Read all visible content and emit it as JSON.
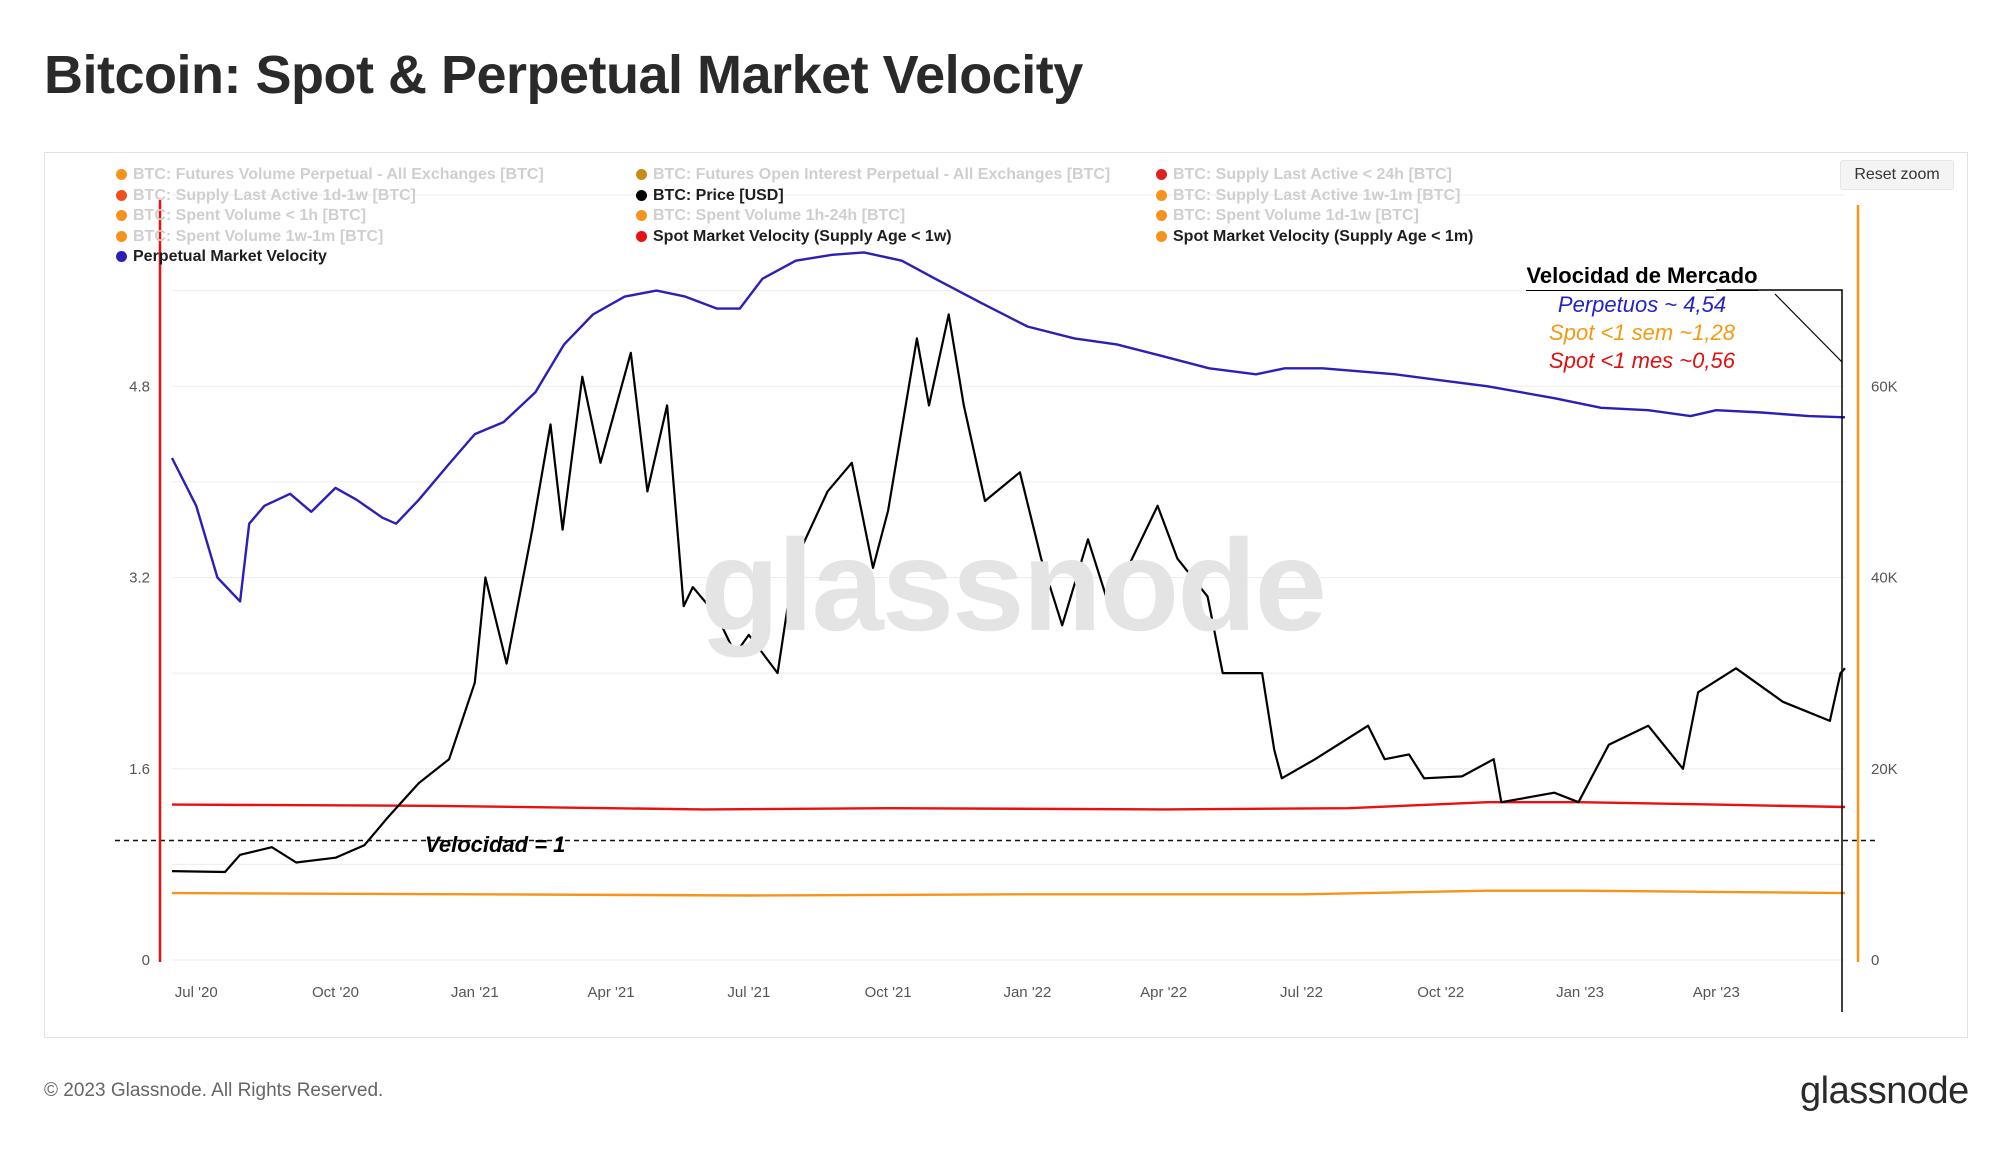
{
  "title": "Bitcoin: Spot & Perpetual Market Velocity",
  "reset_zoom_label": "Reset zoom",
  "watermark": "glassnode",
  "footer": {
    "copyright": "© 2023 Glassnode. All Rights Reserved.",
    "logo": "glassnode"
  },
  "legend": [
    {
      "label": "BTC: Futures Volume Perpetual - All Exchanges [BTC]",
      "color": "#f7931a",
      "active": false
    },
    {
      "label": "BTC: Futures Open Interest Perpetual - All Exchanges [BTC]",
      "color": "#c98a1a",
      "active": false
    },
    {
      "label": "BTC: Supply Last Active < 24h [BTC]",
      "color": "#e02020",
      "active": false
    },
    {
      "label": "BTC: Supply Last Active 1d-1w [BTC]",
      "color": "#f05020",
      "active": false
    },
    {
      "label": "BTC: Price [USD]",
      "color": "#000000",
      "active": true
    },
    {
      "label": "BTC: Supply Last Active 1w-1m [BTC]",
      "color": "#f7931a",
      "active": false
    },
    {
      "label": "BTC: Spent Volume < 1h [BTC]",
      "color": "#f7931a",
      "active": false
    },
    {
      "label": "BTC: Spent Volume 1h-24h [BTC]",
      "color": "#f7931a",
      "active": false
    },
    {
      "label": "BTC: Spent Volume 1d-1w [BTC]",
      "color": "#f7931a",
      "active": false
    },
    {
      "label": "BTC: Spent Volume 1w-1m [BTC]",
      "color": "#f7931a",
      "active": false
    },
    {
      "label": "Spot Market Velocity (Supply Age < 1w)",
      "color": "#e81010",
      "active": true
    },
    {
      "label": "Spot Market Velocity (Supply Age < 1m)",
      "color": "#f7931a",
      "active": true
    },
    {
      "label": "Perpetual Market Velocity",
      "color": "#2b1fb8",
      "active": true
    }
  ],
  "annotation": {
    "title": "Velocidad de Mercado",
    "lines": [
      {
        "text": "Perpetuos ~ 4,54",
        "color": "#2323c8"
      },
      {
        "text": "Spot <1 sem ~1,28",
        "color": "#f39a10"
      },
      {
        "text": "Spot <1 mes ~0,56",
        "color": "#e01010"
      }
    ]
  },
  "reference_line_label": "Velocidad = 1",
  "chart_data": {
    "type": "line",
    "x_ticks": [
      "Jul '20",
      "Oct '20",
      "Jan '21",
      "Apr '21",
      "Jul '21",
      "Oct '21",
      "Jan '22",
      "Apr '22",
      "Jul '22",
      "Oct '22",
      "Jan '23",
      "Apr '23"
    ],
    "x_range": [
      "2020-06-15",
      "2023-06-25"
    ],
    "y_left": {
      "ticks": [
        "0",
        "1.6",
        "3.2",
        "4.8"
      ],
      "range": [
        0,
        6.4
      ]
    },
    "y_right": {
      "ticks": [
        "0",
        "20K",
        "40K",
        "60K"
      ],
      "range": [
        0,
        80000
      ]
    },
    "reference_line": {
      "y": 1.0,
      "style": "dashed"
    },
    "series": [
      {
        "name": "Perpetual Market Velocity",
        "axis": "left",
        "color": "#2b1fb8",
        "points": [
          [
            "2020-06-15",
            4.2
          ],
          [
            "2020-07-01",
            3.8
          ],
          [
            "2020-07-15",
            3.2
          ],
          [
            "2020-07-30",
            3.0
          ],
          [
            "2020-08-05",
            3.65
          ],
          [
            "2020-08-15",
            3.8
          ],
          [
            "2020-09-01",
            3.9
          ],
          [
            "2020-09-15",
            3.75
          ],
          [
            "2020-10-01",
            3.95
          ],
          [
            "2020-10-15",
            3.85
          ],
          [
            "2020-11-01",
            3.7
          ],
          [
            "2020-11-10",
            3.65
          ],
          [
            "2020-11-25",
            3.85
          ],
          [
            "2020-12-15",
            4.15
          ],
          [
            "2021-01-01",
            4.4
          ],
          [
            "2021-01-20",
            4.5
          ],
          [
            "2021-02-10",
            4.75
          ],
          [
            "2021-03-01",
            5.15
          ],
          [
            "2021-03-20",
            5.4
          ],
          [
            "2021-04-10",
            5.55
          ],
          [
            "2021-05-01",
            5.6
          ],
          [
            "2021-05-20",
            5.55
          ],
          [
            "2021-06-10",
            5.45
          ],
          [
            "2021-06-25",
            5.45
          ],
          [
            "2021-07-10",
            5.7
          ],
          [
            "2021-08-01",
            5.85
          ],
          [
            "2021-08-25",
            5.9
          ],
          [
            "2021-09-15",
            5.92
          ],
          [
            "2021-10-10",
            5.85
          ],
          [
            "2021-11-01",
            5.7
          ],
          [
            "2021-12-01",
            5.5
          ],
          [
            "2022-01-01",
            5.3
          ],
          [
            "2022-02-01",
            5.2
          ],
          [
            "2022-03-01",
            5.15
          ],
          [
            "2022-04-01",
            5.05
          ],
          [
            "2022-05-01",
            4.95
          ],
          [
            "2022-06-01",
            4.9
          ],
          [
            "2022-06-20",
            4.95
          ],
          [
            "2022-07-15",
            4.95
          ],
          [
            "2022-09-01",
            4.9
          ],
          [
            "2022-10-01",
            4.85
          ],
          [
            "2022-11-01",
            4.8
          ],
          [
            "2022-12-15",
            4.7
          ],
          [
            "2023-01-15",
            4.62
          ],
          [
            "2023-02-15",
            4.6
          ],
          [
            "2023-03-15",
            4.55
          ],
          [
            "2023-04-01",
            4.6
          ],
          [
            "2023-05-01",
            4.58
          ],
          [
            "2023-06-01",
            4.55
          ],
          [
            "2023-06-25",
            4.54
          ]
        ]
      },
      {
        "name": "Spot Market Velocity (Supply Age < 1w)",
        "axis": "left",
        "color": "#e81010",
        "points": [
          [
            "2020-06-15",
            1.3
          ],
          [
            "2020-12-01",
            1.29
          ],
          [
            "2021-06-01",
            1.26
          ],
          [
            "2021-10-01",
            1.27
          ],
          [
            "2022-04-01",
            1.26
          ],
          [
            "2022-08-01",
            1.27
          ],
          [
            "2022-11-01",
            1.32
          ],
          [
            "2023-01-01",
            1.32
          ],
          [
            "2023-04-01",
            1.3
          ],
          [
            "2023-06-25",
            1.28
          ]
        ]
      },
      {
        "name": "Spot Market Velocity (Supply Age < 1m)",
        "axis": "left",
        "color": "#f7931a",
        "points": [
          [
            "2020-06-15",
            0.56
          ],
          [
            "2021-01-01",
            0.55
          ],
          [
            "2021-07-01",
            0.54
          ],
          [
            "2022-01-01",
            0.55
          ],
          [
            "2022-07-01",
            0.55
          ],
          [
            "2022-11-01",
            0.58
          ],
          [
            "2023-01-01",
            0.58
          ],
          [
            "2023-04-01",
            0.57
          ],
          [
            "2023-06-25",
            0.56
          ]
        ]
      },
      {
        "name": "BTC: Price [USD]",
        "axis": "right",
        "color": "#000000",
        "points": [
          [
            "2020-06-15",
            9300
          ],
          [
            "2020-07-20",
            9200
          ],
          [
            "2020-07-30",
            11000
          ],
          [
            "2020-08-20",
            11800
          ],
          [
            "2020-09-05",
            10200
          ],
          [
            "2020-10-01",
            10700
          ],
          [
            "2020-10-20",
            12000
          ],
          [
            "2020-11-05",
            15000
          ],
          [
            "2020-11-25",
            18500
          ],
          [
            "2020-12-15",
            21000
          ],
          [
            "2021-01-01",
            29000
          ],
          [
            "2021-01-08",
            40000
          ],
          [
            "2021-01-22",
            31000
          ],
          [
            "2021-02-08",
            45000
          ],
          [
            "2021-02-20",
            56000
          ],
          [
            "2021-02-28",
            45000
          ],
          [
            "2021-03-13",
            61000
          ],
          [
            "2021-03-25",
            52000
          ],
          [
            "2021-04-14",
            63500
          ],
          [
            "2021-04-25",
            49000
          ],
          [
            "2021-05-08",
            58000
          ],
          [
            "2021-05-19",
            37000
          ],
          [
            "2021-05-25",
            39000
          ],
          [
            "2021-06-10",
            36000
          ],
          [
            "2021-06-22",
            32000
          ],
          [
            "2021-07-01",
            34000
          ],
          [
            "2021-07-20",
            30000
          ],
          [
            "2021-07-31",
            41500
          ],
          [
            "2021-08-22",
            49000
          ],
          [
            "2021-09-07",
            52000
          ],
          [
            "2021-09-21",
            41000
          ],
          [
            "2021-10-01",
            47000
          ],
          [
            "2021-10-20",
            65000
          ],
          [
            "2021-10-28",
            58000
          ],
          [
            "2021-11-10",
            67500
          ],
          [
            "2021-11-20",
            58000
          ],
          [
            "2021-12-04",
            48000
          ],
          [
            "2021-12-27",
            51000
          ],
          [
            "2022-01-10",
            42000
          ],
          [
            "2022-01-24",
            35000
          ],
          [
            "2022-02-10",
            44000
          ],
          [
            "2022-02-24",
            37000
          ],
          [
            "2022-03-28",
            47500
          ],
          [
            "2022-04-10",
            42000
          ],
          [
            "2022-04-30",
            38000
          ],
          [
            "2022-05-10",
            30000
          ],
          [
            "2022-06-05",
            30000
          ],
          [
            "2022-06-13",
            22000
          ],
          [
            "2022-06-18",
            19000
          ],
          [
            "2022-07-10",
            21000
          ],
          [
            "2022-08-14",
            24500
          ],
          [
            "2022-08-25",
            21000
          ],
          [
            "2022-09-10",
            21500
          ],
          [
            "2022-09-20",
            19000
          ],
          [
            "2022-10-15",
            19200
          ],
          [
            "2022-11-05",
            21000
          ],
          [
            "2022-11-10",
            16500
          ],
          [
            "2022-12-15",
            17500
          ],
          [
            "2022-12-31",
            16500
          ],
          [
            "2023-01-20",
            22500
          ],
          [
            "2023-02-15",
            24500
          ],
          [
            "2023-03-10",
            20000
          ],
          [
            "2023-03-20",
            28000
          ],
          [
            "2023-04-14",
            30500
          ],
          [
            "2023-05-15",
            27000
          ],
          [
            "2023-06-15",
            25000
          ],
          [
            "2023-06-22",
            30000
          ],
          [
            "2023-06-25",
            30500
          ]
        ]
      }
    ]
  }
}
